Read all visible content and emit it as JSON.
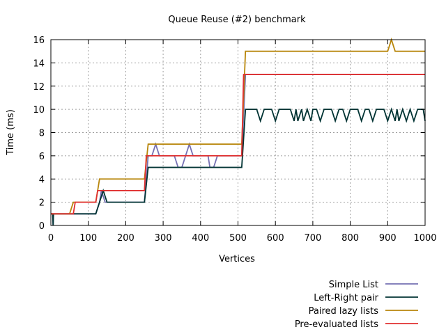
{
  "chart_data": {
    "type": "line",
    "title": "Queue Reuse (#2) benchmark",
    "xlabel": "Vertices",
    "ylabel": "Time (ms)",
    "xlim": [
      0,
      1000
    ],
    "ylim": [
      0,
      16
    ],
    "xticks": [
      0,
      100,
      200,
      300,
      400,
      500,
      600,
      700,
      800,
      900,
      1000
    ],
    "yticks": [
      0,
      2,
      4,
      6,
      8,
      10,
      12,
      14,
      16
    ],
    "grid": true,
    "legend_position": "bottom-right",
    "series": [
      {
        "name": "Simple List",
        "color": "#7570b3",
        "points": [
          [
            0,
            1
          ],
          [
            5,
            1
          ],
          [
            6,
            0
          ],
          [
            7,
            1
          ],
          [
            120,
            1
          ],
          [
            130,
            2
          ],
          [
            135,
            3
          ],
          [
            145,
            2
          ],
          [
            250,
            2
          ],
          [
            260,
            6
          ],
          [
            270,
            6
          ],
          [
            280,
            7
          ],
          [
            290,
            6
          ],
          [
            330,
            6
          ],
          [
            340,
            5
          ],
          [
            350,
            5
          ],
          [
            360,
            6
          ],
          [
            370,
            7
          ],
          [
            380,
            6
          ],
          [
            420,
            6
          ],
          [
            425,
            5
          ],
          [
            435,
            5
          ],
          [
            445,
            6
          ],
          [
            510,
            6
          ],
          [
            520,
            13
          ],
          [
            1000,
            13
          ]
        ]
      },
      {
        "name": "Left-Right pair",
        "color": "#003333",
        "points": [
          [
            0,
            1
          ],
          [
            5,
            1
          ],
          [
            6,
            0
          ],
          [
            7,
            1
          ],
          [
            120,
            1
          ],
          [
            130,
            2
          ],
          [
            140,
            3
          ],
          [
            150,
            2
          ],
          [
            250,
            2
          ],
          [
            260,
            5
          ],
          [
            510,
            5
          ],
          [
            520,
            10
          ],
          [
            550,
            10
          ],
          [
            560,
            9
          ],
          [
            570,
            10
          ],
          [
            590,
            10
          ],
          [
            600,
            9
          ],
          [
            610,
            10
          ],
          [
            640,
            10
          ],
          [
            650,
            9
          ],
          [
            655,
            10
          ],
          [
            660,
            9
          ],
          [
            670,
            10
          ],
          [
            675,
            9
          ],
          [
            685,
            10
          ],
          [
            695,
            9
          ],
          [
            700,
            10
          ],
          [
            710,
            10
          ],
          [
            720,
            9
          ],
          [
            730,
            10
          ],
          [
            750,
            10
          ],
          [
            760,
            9
          ],
          [
            770,
            10
          ],
          [
            780,
            10
          ],
          [
            790,
            9
          ],
          [
            800,
            10
          ],
          [
            820,
            10
          ],
          [
            830,
            9
          ],
          [
            840,
            10
          ],
          [
            850,
            10
          ],
          [
            860,
            9
          ],
          [
            870,
            10
          ],
          [
            890,
            10
          ],
          [
            900,
            9
          ],
          [
            910,
            10
          ],
          [
            920,
            9
          ],
          [
            925,
            10
          ],
          [
            930,
            9
          ],
          [
            940,
            10
          ],
          [
            950,
            9
          ],
          [
            960,
            10
          ],
          [
            970,
            9
          ],
          [
            980,
            10
          ],
          [
            995,
            10
          ],
          [
            1000,
            9
          ]
        ]
      },
      {
        "name": "Paired lazy lists",
        "color": "#b8860b",
        "points": [
          [
            0,
            1
          ],
          [
            50,
            1
          ],
          [
            60,
            2
          ],
          [
            120,
            2
          ],
          [
            130,
            4
          ],
          [
            250,
            4
          ],
          [
            260,
            7
          ],
          [
            510,
            7
          ],
          [
            520,
            15
          ],
          [
            900,
            15
          ],
          [
            910,
            16
          ],
          [
            920,
            15
          ],
          [
            1000,
            15
          ]
        ]
      },
      {
        "name": "Pre-evaluated lists",
        "color": "#e03030",
        "points": [
          [
            0,
            1
          ],
          [
            60,
            1
          ],
          [
            65,
            2
          ],
          [
            120,
            2
          ],
          [
            125,
            3
          ],
          [
            250,
            3
          ],
          [
            255,
            6
          ],
          [
            510,
            6
          ],
          [
            515,
            13
          ],
          [
            1000,
            13
          ]
        ]
      }
    ]
  }
}
